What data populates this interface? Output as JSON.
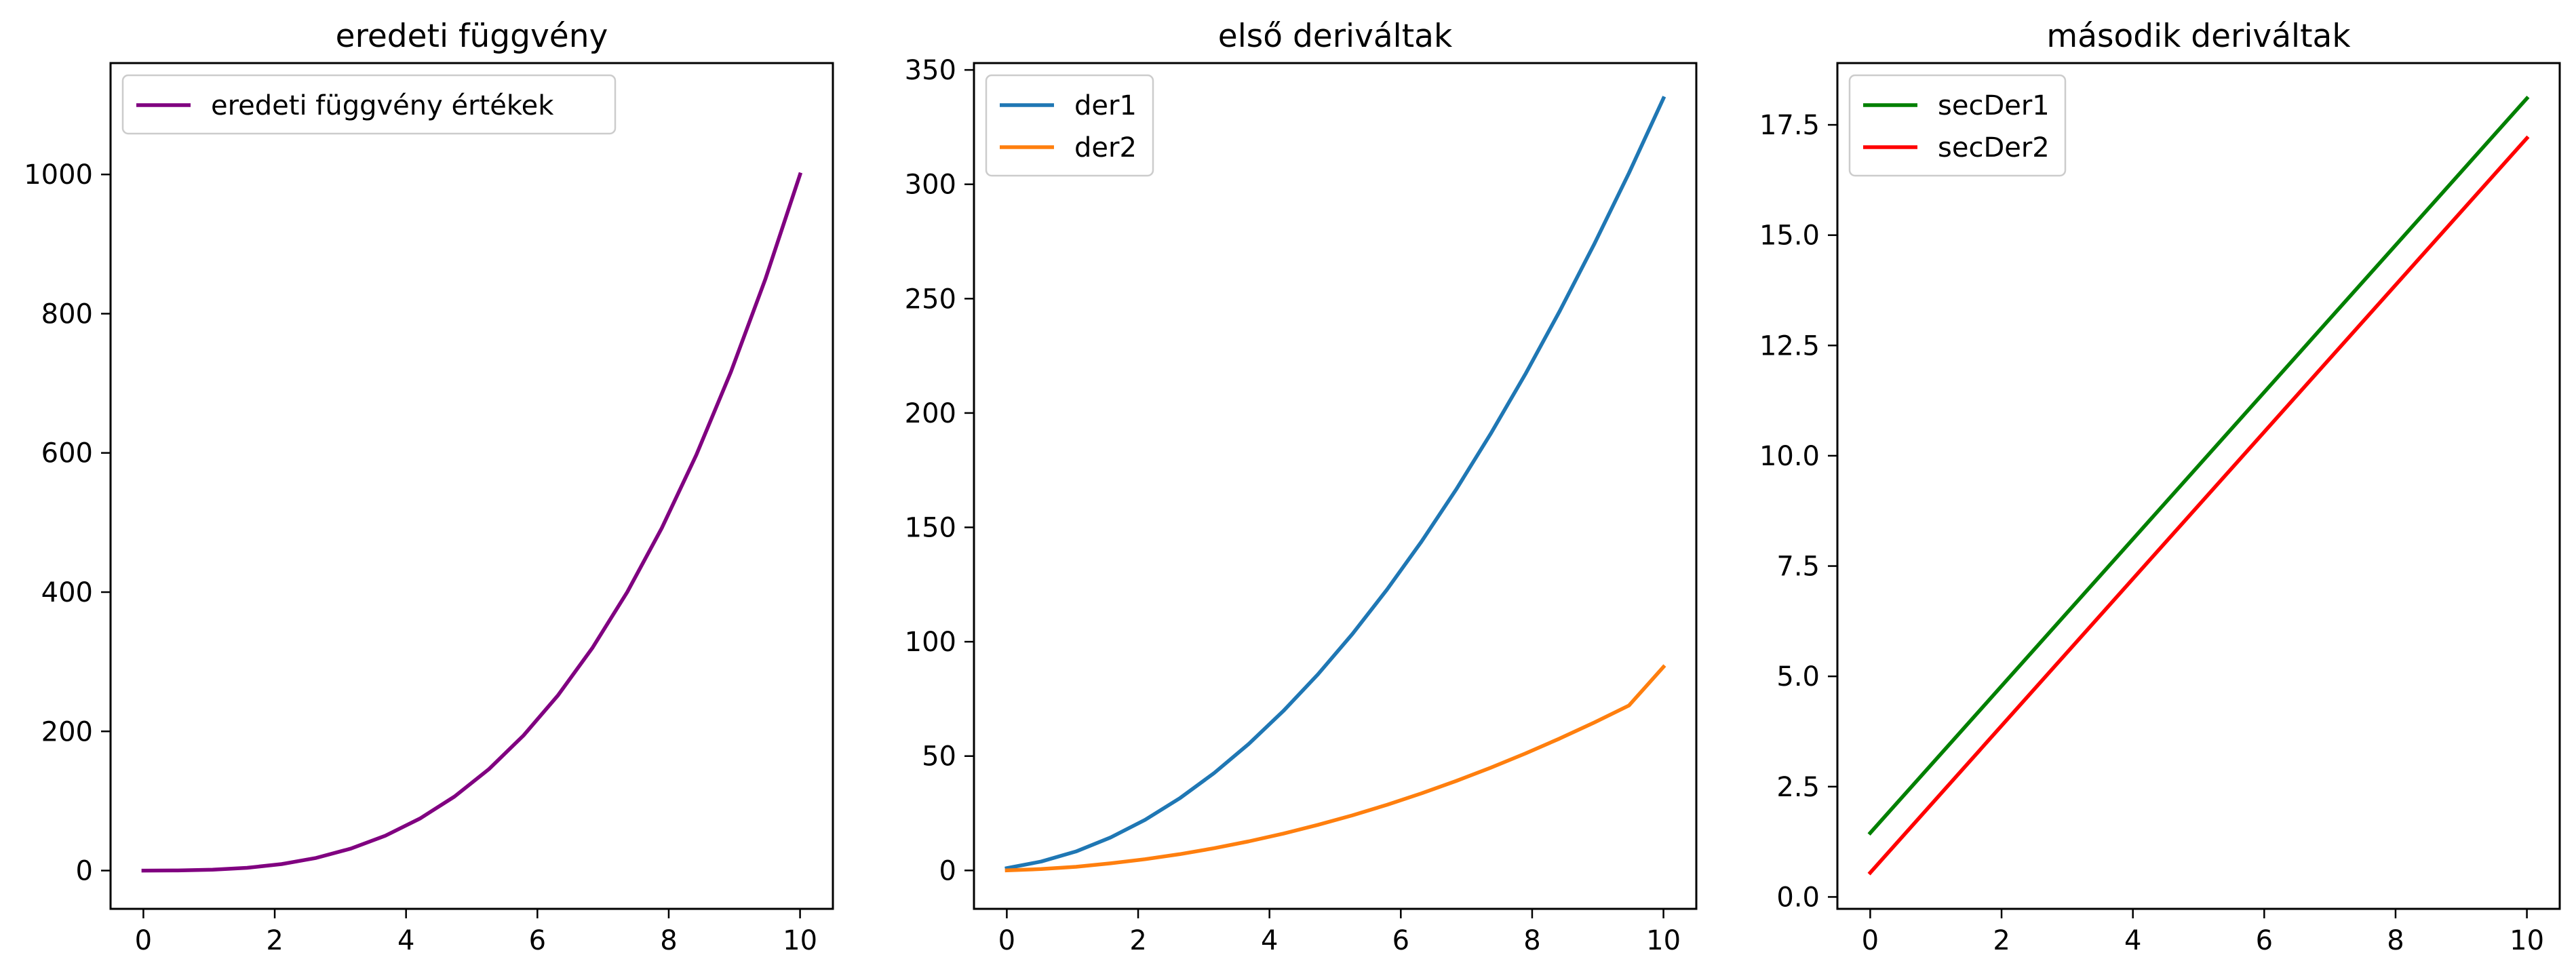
{
  "chart_data": [
    {
      "type": "line",
      "title": "eredeti függvény",
      "xlabel": "",
      "ylabel": "",
      "xlim": [
        -0.5,
        10.5
      ],
      "ylim": [
        -55.0,
        1160.0
      ],
      "xticks": [
        0,
        2,
        4,
        6,
        8,
        10
      ],
      "xtick_labels": [
        "0",
        "2",
        "4",
        "6",
        "8",
        "10"
      ],
      "yticks": [
        0,
        200,
        400,
        600,
        800,
        1000
      ],
      "ytick_labels": [
        "0",
        "200",
        "400",
        "600",
        "800",
        "1000"
      ],
      "grid": false,
      "legend_position": "upper-left",
      "series": [
        {
          "name": "eredeti függvény értékek",
          "color": "#800080",
          "x": [
            0,
            0.526,
            1.053,
            1.579,
            2.105,
            2.632,
            3.158,
            3.684,
            4.211,
            4.737,
            5.263,
            5.789,
            6.316,
            6.842,
            7.368,
            7.895,
            8.421,
            8.947,
            9.474,
            10
          ],
          "y": [
            0.0,
            0.1,
            1.2,
            3.9,
            9.3,
            18.2,
            31.5,
            50.0,
            74.7,
            106.3,
            145.8,
            194.1,
            252.0,
            320.4,
            400.1,
            492.2,
            597.2,
            716.3,
            850.4,
            1000.0
          ]
        }
      ]
    },
    {
      "type": "line",
      "title": "első deriváltak",
      "xlabel": "",
      "ylabel": "",
      "xlim": [
        -0.5,
        10.5
      ],
      "ylim": [
        -16.8,
        353.0
      ],
      "xticks": [
        0,
        2,
        4,
        6,
        8,
        10
      ],
      "xtick_labels": [
        "0",
        "2",
        "4",
        "6",
        "8",
        "10"
      ],
      "yticks": [
        0,
        50,
        100,
        150,
        200,
        250,
        300,
        350
      ],
      "ytick_labels": [
        "0",
        "50",
        "100",
        "150",
        "200",
        "250",
        "300",
        "350"
      ],
      "grid": false,
      "legend_position": "upper-left",
      "series": [
        {
          "name": "der1",
          "color": "#1f77b4",
          "x": [
            0,
            0.526,
            1.053,
            1.579,
            2.105,
            2.632,
            3.158,
            3.684,
            4.211,
            4.737,
            5.263,
            5.789,
            6.316,
            6.842,
            7.368,
            7.895,
            8.421,
            8.947,
            9.474,
            10
          ],
          "y": [
            1.0,
            3.9,
            8.3,
            14.4,
            22.1,
            31.5,
            42.6,
            55.3,
            69.7,
            85.7,
            103.4,
            122.8,
            143.8,
            166.5,
            190.9,
            216.9,
            244.6,
            273.9,
            304.9,
            337.6
          ]
        },
        {
          "name": "der2",
          "color": "#ff7f0e",
          "x": [
            0,
            0.526,
            1.053,
            1.579,
            2.105,
            2.632,
            3.158,
            3.684,
            4.211,
            4.737,
            5.263,
            5.789,
            6.316,
            6.842,
            7.368,
            7.895,
            8.421,
            8.947,
            9.474,
            10
          ],
          "y": [
            0.0,
            0.6,
            1.6,
            3.1,
            4.9,
            7.1,
            9.7,
            12.7,
            16.1,
            19.9,
            24.1,
            28.7,
            33.7,
            39.1,
            44.9,
            51.1,
            57.7,
            64.7,
            72.1,
            89.0
          ]
        }
      ]
    },
    {
      "type": "line",
      "title": "második deriváltak",
      "xlabel": "",
      "ylabel": "",
      "xlim": [
        -0.5,
        10.5
      ],
      "ylim": [
        -0.27,
        18.9
      ],
      "xticks": [
        0,
        2,
        4,
        6,
        8,
        10
      ],
      "xtick_labels": [
        "0",
        "2",
        "4",
        "6",
        "8",
        "10"
      ],
      "yticks": [
        0.0,
        2.5,
        5.0,
        7.5,
        10.0,
        12.5,
        15.0,
        17.5
      ],
      "ytick_labels": [
        "0.0",
        "2.5",
        "5.0",
        "7.5",
        "10.0",
        "12.5",
        "15.0",
        "17.5"
      ],
      "grid": false,
      "legend_position": "upper-left",
      "series": [
        {
          "name": "secDer1",
          "color": "#008000",
          "x": [
            0,
            10
          ],
          "y": [
            1.45,
            18.1
          ]
        },
        {
          "name": "secDer2",
          "color": "#ff0000",
          "x": [
            0,
            10
          ],
          "y": [
            0.55,
            17.2
          ]
        }
      ]
    }
  ]
}
